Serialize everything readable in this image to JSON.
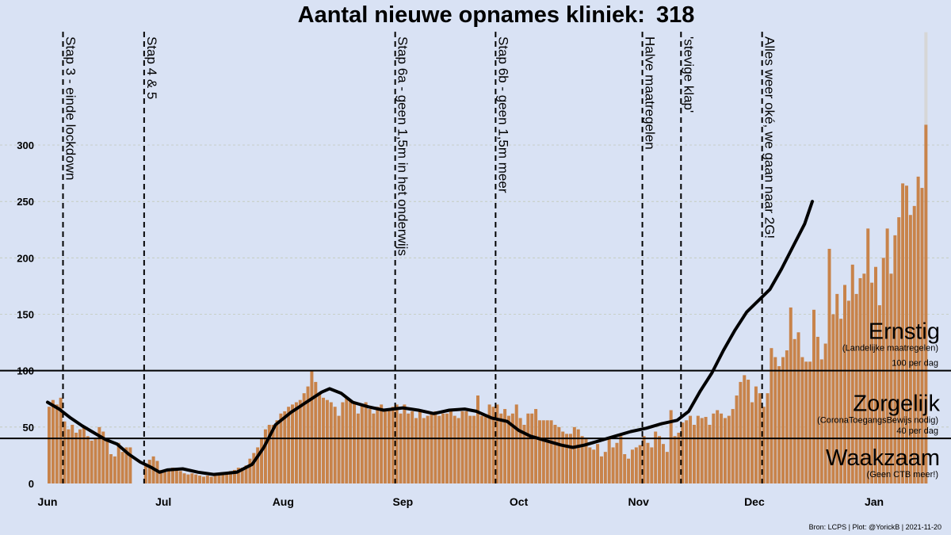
{
  "chart_data": {
    "type": "bar",
    "title": "Aantal nieuwe opnames kliniek:",
    "title_value": "318",
    "source": "Bron: LCPS | Plot: @YorickB |  2021-11-20",
    "colors": {
      "background": "#d9e2f4",
      "bar": "#c8834a",
      "bar_pending": "#d6d6d6",
      "line": "#000000",
      "grid": "#c2c9b8"
    },
    "x_start": "2021-06-01",
    "x_end": "2022-01-01",
    "xlim": [
      "2021-06-01",
      "2022-01-01"
    ],
    "x_ticks": [
      {
        "date": "2021-06-01",
        "label": "Jun"
      },
      {
        "date": "2021-07-01",
        "label": "Jul"
      },
      {
        "date": "2021-08-01",
        "label": "Aug"
      },
      {
        "date": "2021-09-01",
        "label": "Sep"
      },
      {
        "date": "2021-10-01",
        "label": "Oct"
      },
      {
        "date": "2021-11-01",
        "label": "Nov"
      },
      {
        "date": "2021-12-01",
        "label": "Dec"
      },
      {
        "date": "2022-01-01",
        "label": "Jan"
      }
    ],
    "ylim": [
      0,
      400
    ],
    "y_ticks": [
      0,
      50,
      100,
      150,
      200,
      250,
      300
    ],
    "grid": true,
    "daily_start": "2021-06-01",
    "daily_values": [
      68,
      74,
      70,
      76,
      55,
      48,
      52,
      45,
      48,
      50,
      42,
      38,
      40,
      50,
      46,
      38,
      26,
      24,
      36,
      28,
      32,
      32,
      0,
      0,
      0,
      18,
      21,
      24,
      20,
      12,
      10,
      13,
      14,
      12,
      11,
      9,
      8,
      9,
      8,
      7,
      6,
      7,
      6,
      7,
      8,
      10,
      10,
      11,
      12,
      14,
      14,
      16,
      22,
      27,
      32,
      40,
      48,
      52,
      52,
      56,
      62,
      64,
      68,
      70,
      72,
      74,
      80,
      86,
      100,
      90,
      80,
      76,
      74,
      72,
      68,
      60,
      72,
      76,
      74,
      72,
      62,
      70,
      72,
      66,
      62,
      68,
      70,
      64,
      66,
      68,
      70,
      62,
      70,
      62,
      64,
      58,
      64,
      58,
      60,
      62,
      64,
      60,
      62,
      62,
      66,
      60,
      58,
      64,
      64,
      60,
      60,
      78,
      60,
      60,
      70,
      68,
      70,
      62,
      66,
      60,
      62,
      70,
      58,
      52,
      62,
      62,
      66,
      56,
      56,
      56,
      56,
      52,
      50,
      46,
      44,
      44,
      50,
      48,
      42,
      40,
      32,
      30,
      35,
      24,
      28,
      40,
      32,
      36,
      42,
      26,
      22,
      30,
      32,
      34,
      42,
      36,
      32,
      46,
      42,
      35,
      28,
      65,
      42,
      45,
      54,
      56,
      60,
      52,
      60,
      58,
      59,
      52,
      62,
      65,
      62,
      58,
      60,
      66,
      78,
      90,
      96,
      92,
      72,
      86,
      80,
      68,
      80,
      120,
      112,
      104,
      112,
      118,
      156,
      128,
      134,
      112,
      108,
      108,
      154,
      130,
      110,
      124,
      208,
      150,
      168,
      146,
      176,
      162,
      194,
      168,
      182,
      186,
      226,
      178,
      192,
      158,
      200,
      226,
      186,
      220,
      236,
      266,
      264,
      238,
      246,
      272,
      262,
      318
    ],
    "pending_last": {
      "value": 318,
      "pending_top": 400
    },
    "series": [
      {
        "name": "",
        "type": "line",
        "points": [
          [
            "2021-06-01",
            72
          ],
          [
            "2021-06-04",
            66
          ],
          [
            "2021-06-07",
            58
          ],
          [
            "2021-06-10",
            51
          ],
          [
            "2021-06-13",
            45
          ],
          [
            "2021-06-16",
            39
          ],
          [
            "2021-06-19",
            35
          ],
          [
            "2021-06-22",
            26
          ],
          [
            "2021-06-25",
            19
          ],
          [
            "2021-06-28",
            14
          ],
          [
            "2021-06-30",
            10
          ],
          [
            "2021-07-02",
            12
          ],
          [
            "2021-07-06",
            13
          ],
          [
            "2021-07-10",
            10
          ],
          [
            "2021-07-14",
            8
          ],
          [
            "2021-07-17",
            9
          ],
          [
            "2021-07-20",
            10
          ],
          [
            "2021-07-24",
            17
          ],
          [
            "2021-07-27",
            32
          ],
          [
            "2021-07-30",
            52
          ],
          [
            "2021-08-03",
            63
          ],
          [
            "2021-08-07",
            72
          ],
          [
            "2021-08-11",
            81
          ],
          [
            "2021-08-13",
            84
          ],
          [
            "2021-08-16",
            80
          ],
          [
            "2021-08-19",
            72
          ],
          [
            "2021-08-23",
            68
          ],
          [
            "2021-08-27",
            65
          ],
          [
            "2021-09-01",
            67
          ],
          [
            "2021-09-05",
            65
          ],
          [
            "2021-09-09",
            62
          ],
          [
            "2021-09-13",
            65
          ],
          [
            "2021-09-17",
            66
          ],
          [
            "2021-09-20",
            64
          ],
          [
            "2021-09-24",
            58
          ],
          [
            "2021-09-28",
            55
          ],
          [
            "2021-10-01",
            47
          ],
          [
            "2021-10-04",
            42
          ],
          [
            "2021-10-08",
            38
          ],
          [
            "2021-10-12",
            34
          ],
          [
            "2021-10-15",
            32
          ],
          [
            "2021-10-18",
            34
          ],
          [
            "2021-10-22",
            38
          ],
          [
            "2021-10-26",
            42
          ],
          [
            "2021-10-30",
            46
          ],
          [
            "2021-11-03",
            49
          ],
          [
            "2021-11-07",
            53
          ],
          [
            "2021-11-11",
            56
          ],
          [
            "2021-11-14",
            64
          ],
          [
            "2021-11-17",
            82
          ],
          [
            "2021-11-20",
            98
          ],
          [
            "2021-11-23",
            118
          ],
          [
            "2021-11-26",
            136
          ],
          [
            "2021-11-29",
            152
          ],
          [
            "2021-12-02",
            162
          ],
          [
            "2021-12-05",
            172
          ],
          [
            "2021-12-08",
            190
          ],
          [
            "2021-12-11",
            210
          ],
          [
            "2021-12-14",
            230
          ],
          [
            "2021-12-16",
            250
          ]
        ]
      }
    ],
    "events": [
      {
        "date": "2021-06-05",
        "label": "Stap 3 - einde lockdown"
      },
      {
        "date": "2021-06-26",
        "label": "Stap 4 & 5"
      },
      {
        "date": "2021-08-30",
        "label": "Stap 6a - geen 1,5m in het onderwijs"
      },
      {
        "date": "2021-09-25",
        "label": "Stap 6b - geen 1,5m meer"
      },
      {
        "date": "2021-11-02",
        "label": "Halve maatregelen"
      },
      {
        "date": "2021-11-12",
        "label": "'stevige klap'"
      },
      {
        "date": "2021-12-03",
        "label": "Alles weer oké, we gaan naar 2G!"
      }
    ],
    "thresholds": [
      {
        "value": 100,
        "label": "100 per dag"
      },
      {
        "value": 40,
        "label": "40 per dag"
      }
    ],
    "zones": [
      {
        "name": "Ernstig",
        "sub": "(Landelijke maatregelen)",
        "y": 122
      },
      {
        "name": "Zorgelijk",
        "sub": "(CoronaToegangsBewijs nodig)",
        "y": 58
      },
      {
        "name": "Waakzaam",
        "sub": "(Geen CTB meer!)",
        "y": 10
      }
    ]
  }
}
